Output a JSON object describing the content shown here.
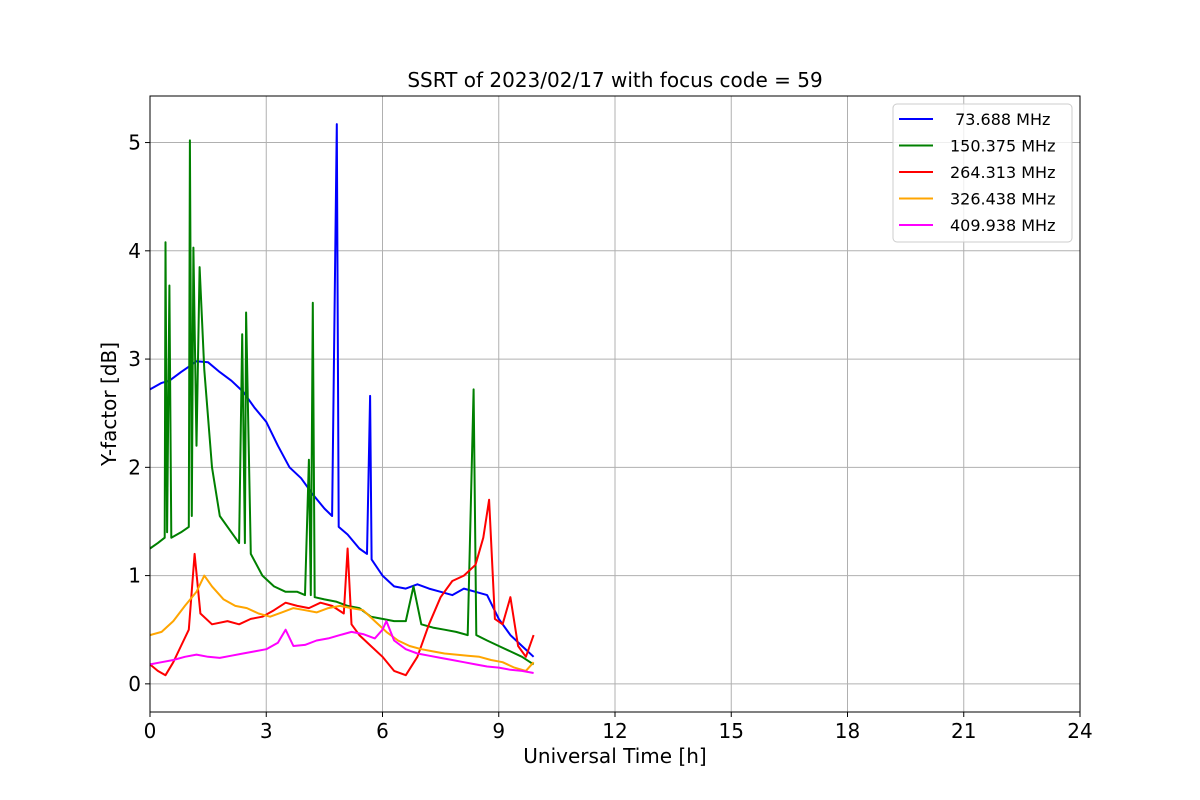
{
  "chart_data": {
    "type": "line",
    "title": "SSRT of 2023/02/17 with focus code = 59",
    "xlabel": "Universal Time [h]",
    "ylabel": "Y-factor [dB]",
    "xlim": [
      0,
      24
    ],
    "ylim": [
      -0.26,
      5.43
    ],
    "x_ticks": [
      0,
      3,
      6,
      9,
      12,
      15,
      18,
      21,
      24
    ],
    "y_ticks": [
      0,
      1,
      2,
      3,
      4,
      5
    ],
    "grid": true,
    "legend_position": "top-right",
    "series": [
      {
        "name": " 73.688 MHz",
        "color": "#0000ff",
        "points": [
          [
            0,
            2.72
          ],
          [
            0.3,
            2.78
          ],
          [
            0.5,
            2.8
          ],
          [
            0.8,
            2.88
          ],
          [
            1.0,
            2.93
          ],
          [
            1.2,
            2.98
          ],
          [
            1.5,
            2.97
          ],
          [
            1.8,
            2.88
          ],
          [
            2.1,
            2.8
          ],
          [
            2.4,
            2.7
          ],
          [
            2.7,
            2.55
          ],
          [
            3.0,
            2.42
          ],
          [
            3.3,
            2.2
          ],
          [
            3.6,
            2.0
          ],
          [
            3.9,
            1.9
          ],
          [
            4.2,
            1.75
          ],
          [
            4.5,
            1.62
          ],
          [
            4.7,
            1.55
          ],
          [
            4.82,
            5.17
          ],
          [
            4.87,
            1.45
          ],
          [
            5.1,
            1.38
          ],
          [
            5.4,
            1.25
          ],
          [
            5.6,
            1.2
          ],
          [
            5.68,
            2.66
          ],
          [
            5.72,
            1.15
          ],
          [
            6.0,
            1.0
          ],
          [
            6.3,
            0.9
          ],
          [
            6.6,
            0.88
          ],
          [
            6.9,
            0.92
          ],
          [
            7.2,
            0.88
          ],
          [
            7.5,
            0.85
          ],
          [
            7.8,
            0.82
          ],
          [
            8.1,
            0.88
          ],
          [
            8.4,
            0.85
          ],
          [
            8.7,
            0.82
          ],
          [
            9.0,
            0.6
          ],
          [
            9.3,
            0.45
          ],
          [
            9.6,
            0.35
          ],
          [
            9.9,
            0.25
          ]
        ]
      },
      {
        "name": "150.375 MHz",
        "color": "#008000",
        "points": [
          [
            0,
            1.25
          ],
          [
            0.2,
            1.3
          ],
          [
            0.38,
            1.35
          ],
          [
            0.4,
            4.08
          ],
          [
            0.44,
            1.4
          ],
          [
            0.5,
            3.68
          ],
          [
            0.55,
            1.35
          ],
          [
            0.8,
            1.4
          ],
          [
            1.0,
            1.45
          ],
          [
            1.03,
            5.02
          ],
          [
            1.08,
            1.55
          ],
          [
            1.12,
            4.03
          ],
          [
            1.2,
            2.2
          ],
          [
            1.28,
            3.85
          ],
          [
            1.4,
            2.9
          ],
          [
            1.6,
            2.0
          ],
          [
            1.8,
            1.55
          ],
          [
            2.1,
            1.4
          ],
          [
            2.3,
            1.3
          ],
          [
            2.38,
            3.23
          ],
          [
            2.45,
            1.3
          ],
          [
            2.48,
            3.43
          ],
          [
            2.6,
            1.2
          ],
          [
            2.9,
            1.0
          ],
          [
            3.2,
            0.9
          ],
          [
            3.5,
            0.85
          ],
          [
            3.8,
            0.85
          ],
          [
            4.0,
            0.82
          ],
          [
            4.1,
            2.07
          ],
          [
            4.15,
            0.82
          ],
          [
            4.2,
            3.52
          ],
          [
            4.25,
            0.8
          ],
          [
            4.5,
            0.78
          ],
          [
            4.8,
            0.76
          ],
          [
            5.1,
            0.72
          ],
          [
            5.4,
            0.7
          ],
          [
            5.7,
            0.62
          ],
          [
            6.0,
            0.6
          ],
          [
            6.3,
            0.58
          ],
          [
            6.6,
            0.58
          ],
          [
            6.8,
            0.9
          ],
          [
            7.0,
            0.55
          ],
          [
            7.3,
            0.52
          ],
          [
            7.6,
            0.5
          ],
          [
            7.9,
            0.48
          ],
          [
            8.2,
            0.45
          ],
          [
            8.35,
            2.72
          ],
          [
            8.42,
            0.45
          ],
          [
            8.7,
            0.4
          ],
          [
            9.0,
            0.35
          ],
          [
            9.3,
            0.3
          ],
          [
            9.6,
            0.25
          ],
          [
            9.9,
            0.18
          ]
        ]
      },
      {
        "name": "264.313 MHz",
        "color": "#ff0000",
        "points": [
          [
            0,
            0.18
          ],
          [
            0.2,
            0.12
          ],
          [
            0.4,
            0.08
          ],
          [
            0.6,
            0.2
          ],
          [
            0.8,
            0.35
          ],
          [
            1.0,
            0.5
          ],
          [
            1.15,
            1.2
          ],
          [
            1.3,
            0.65
          ],
          [
            1.6,
            0.55
          ],
          [
            2.0,
            0.58
          ],
          [
            2.3,
            0.55
          ],
          [
            2.6,
            0.6
          ],
          [
            2.9,
            0.62
          ],
          [
            3.2,
            0.68
          ],
          [
            3.5,
            0.75
          ],
          [
            3.8,
            0.72
          ],
          [
            4.1,
            0.7
          ],
          [
            4.4,
            0.75
          ],
          [
            4.7,
            0.72
          ],
          [
            5.0,
            0.65
          ],
          [
            5.1,
            1.25
          ],
          [
            5.2,
            0.55
          ],
          [
            5.4,
            0.45
          ],
          [
            5.7,
            0.35
          ],
          [
            6.0,
            0.25
          ],
          [
            6.3,
            0.12
          ],
          [
            6.6,
            0.08
          ],
          [
            6.9,
            0.25
          ],
          [
            7.2,
            0.55
          ],
          [
            7.5,
            0.8
          ],
          [
            7.8,
            0.95
          ],
          [
            8.1,
            1.0
          ],
          [
            8.4,
            1.1
          ],
          [
            8.6,
            1.35
          ],
          [
            8.75,
            1.7
          ],
          [
            8.9,
            0.6
          ],
          [
            9.1,
            0.55
          ],
          [
            9.3,
            0.8
          ],
          [
            9.5,
            0.35
          ],
          [
            9.7,
            0.25
          ],
          [
            9.9,
            0.45
          ]
        ]
      },
      {
        "name": "326.438 MHz",
        "color": "#ffa500",
        "points": [
          [
            0,
            0.45
          ],
          [
            0.3,
            0.48
          ],
          [
            0.6,
            0.58
          ],
          [
            0.9,
            0.72
          ],
          [
            1.2,
            0.85
          ],
          [
            1.4,
            1.0
          ],
          [
            1.6,
            0.9
          ],
          [
            1.9,
            0.78
          ],
          [
            2.2,
            0.72
          ],
          [
            2.5,
            0.7
          ],
          [
            2.8,
            0.65
          ],
          [
            3.1,
            0.62
          ],
          [
            3.4,
            0.66
          ],
          [
            3.7,
            0.7
          ],
          [
            4.0,
            0.68
          ],
          [
            4.3,
            0.66
          ],
          [
            4.6,
            0.7
          ],
          [
            4.9,
            0.72
          ],
          [
            5.2,
            0.7
          ],
          [
            5.5,
            0.68
          ],
          [
            5.8,
            0.58
          ],
          [
            6.1,
            0.48
          ],
          [
            6.4,
            0.4
          ],
          [
            6.7,
            0.35
          ],
          [
            7.0,
            0.32
          ],
          [
            7.3,
            0.3
          ],
          [
            7.6,
            0.28
          ],
          [
            7.9,
            0.27
          ],
          [
            8.2,
            0.26
          ],
          [
            8.5,
            0.25
          ],
          [
            8.8,
            0.22
          ],
          [
            9.1,
            0.2
          ],
          [
            9.4,
            0.15
          ],
          [
            9.7,
            0.12
          ],
          [
            9.9,
            0.2
          ]
        ]
      },
      {
        "name": "409.938 MHz",
        "color": "#ff00ff",
        "points": [
          [
            0,
            0.18
          ],
          [
            0.3,
            0.2
          ],
          [
            0.6,
            0.22
          ],
          [
            0.9,
            0.25
          ],
          [
            1.2,
            0.27
          ],
          [
            1.5,
            0.25
          ],
          [
            1.8,
            0.24
          ],
          [
            2.1,
            0.26
          ],
          [
            2.4,
            0.28
          ],
          [
            2.7,
            0.3
          ],
          [
            3.0,
            0.32
          ],
          [
            3.3,
            0.38
          ],
          [
            3.5,
            0.5
          ],
          [
            3.7,
            0.35
          ],
          [
            4.0,
            0.36
          ],
          [
            4.3,
            0.4
          ],
          [
            4.6,
            0.42
          ],
          [
            4.9,
            0.45
          ],
          [
            5.2,
            0.48
          ],
          [
            5.5,
            0.46
          ],
          [
            5.8,
            0.42
          ],
          [
            6.0,
            0.5
          ],
          [
            6.1,
            0.58
          ],
          [
            6.3,
            0.4
          ],
          [
            6.6,
            0.32
          ],
          [
            6.9,
            0.28
          ],
          [
            7.2,
            0.26
          ],
          [
            7.5,
            0.24
          ],
          [
            7.8,
            0.22
          ],
          [
            8.1,
            0.2
          ],
          [
            8.4,
            0.18
          ],
          [
            8.7,
            0.16
          ],
          [
            9.0,
            0.15
          ],
          [
            9.3,
            0.13
          ],
          [
            9.6,
            0.12
          ],
          [
            9.9,
            0.1
          ]
        ]
      }
    ]
  }
}
